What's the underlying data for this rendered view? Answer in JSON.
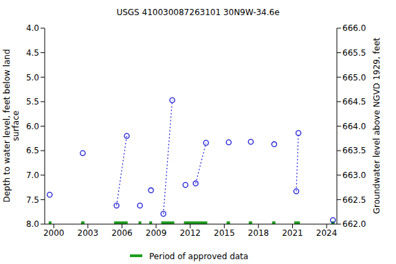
{
  "chart_data": {
    "type": "scatter",
    "title": "USGS 410030087263101 30N9W-34.6e",
    "x_label": null,
    "y_label": [
      "Depth to water level, feet below land",
      "surface"
    ],
    "y2_label": "Groundwater level above NGVD 1929, feet",
    "x": [
      1999.64,
      2002.55,
      2005.52,
      2006.42,
      2007.58,
      2008.55,
      2009.64,
      2010.42,
      2011.58,
      2012.48,
      2013.39,
      2015.39,
      2017.33,
      2019.39,
      2021.33,
      2021.52,
      2024.55
    ],
    "values": [
      7.4,
      6.55,
      7.62,
      6.2,
      7.62,
      7.31,
      7.79,
      5.47,
      7.2,
      7.17,
      6.34,
      6.33,
      6.32,
      6.37,
      7.33,
      6.14,
      7.92
    ],
    "groups": [
      1,
      2,
      3,
      3,
      4,
      5,
      6,
      6,
      7,
      8,
      8,
      9,
      10,
      11,
      12,
      12,
      13
    ],
    "color": "#1c1cd6",
    "marker": "circle",
    "line_style": "dotted",
    "xlim": [
      1999.2,
      2024.9
    ],
    "xticks": [
      2000,
      2003,
      2006,
      2009,
      2012,
      2015,
      2018,
      2021,
      2024
    ],
    "ylim": [
      8.0,
      4.0
    ],
    "yticks": [
      {
        "value": 4,
        "label": "4.0"
      },
      4.5,
      {
        "value": 5,
        "label": "5.0"
      },
      5.5,
      {
        "value": 6,
        "label": "6.0"
      },
      6.5,
      {
        "value": 7,
        "label": "7.0"
      },
      7.5,
      {
        "value": 8,
        "label": "8.0"
      }
    ],
    "y2lim": [
      662,
      666
    ],
    "y2ticks": [
      {
        "value": 662,
        "label": "662.0"
      },
      662.5,
      {
        "value": 663,
        "label": "663.0"
      },
      663.5,
      {
        "value": 664,
        "label": "664.0"
      },
      664.5,
      {
        "value": 665,
        "label": "665.0"
      },
      665.5,
      {
        "value": 666,
        "label": "666.0"
      }
    ],
    "grid": false,
    "legend": "bottom",
    "approved": {
      "name": "Period of approved data",
      "color": "#1f9e1f",
      "periods": [
        [
          1999.55,
          1999.8
        ],
        [
          2002.4,
          2002.7
        ],
        [
          2005.3,
          2006.5
        ],
        [
          2007.45,
          2007.7
        ],
        [
          2008.4,
          2008.65
        ],
        [
          2009.45,
          2010.6
        ],
        [
          2011.45,
          2013.5
        ],
        [
          2015.2,
          2015.5
        ],
        [
          2017.15,
          2017.45
        ],
        [
          2019.2,
          2019.5
        ],
        [
          2021.15,
          2021.65
        ],
        [
          2024.4,
          2024.7
        ]
      ]
    }
  }
}
